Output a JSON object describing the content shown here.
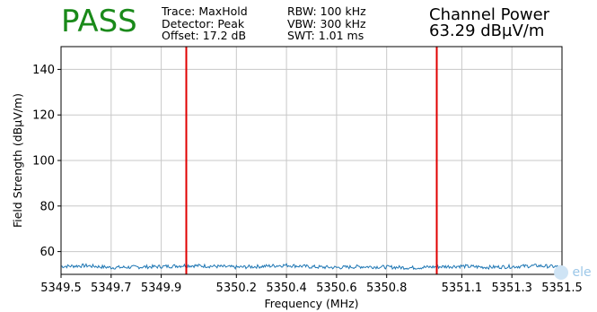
{
  "header": {
    "status": "PASS",
    "settings_left": [
      "Trace: MaxHold",
      "Detector: Peak",
      "Offset: 17.2 dB"
    ],
    "settings_right": [
      "RBW: 100 kHz",
      "VBW: 300 kHz",
      "SWT: 1.01 ms"
    ],
    "measure_label": "Channel Power",
    "measure_value": "63.29 dBµV/m"
  },
  "watermark": {
    "text": "ele"
  },
  "colors": {
    "pass": "#1a8a1a",
    "trace": "#1f77b4",
    "marker": "#e00000",
    "grid": "#c8c8c8"
  },
  "chart_data": {
    "type": "line",
    "title": "",
    "xlabel": "Frequency (MHz)",
    "ylabel": "Field Strength (dBµV/m)",
    "xlim": [
      5349.5,
      5351.5
    ],
    "ylim": [
      50,
      150
    ],
    "xticks": [
      5349.5,
      5349.7,
      5349.9,
      5350.2,
      5350.4,
      5350.6,
      5350.8,
      5351.1,
      5351.3,
      5351.5
    ],
    "xtick_labels": [
      "5349.5",
      "5349.7",
      "5349.9",
      "5350.2",
      "5350.4",
      "5350.6",
      "5350.8",
      "5351.1",
      "5351.3",
      "5351.5"
    ],
    "yticks": [
      60,
      80,
      100,
      120,
      140
    ],
    "ytick_labels": [
      "60",
      "80",
      "100",
      "120",
      "140"
    ],
    "grid": true,
    "markers": [
      5350.0,
      5351.0
    ],
    "series": [
      {
        "x": [
          5349.5,
          5349.6,
          5349.7,
          5349.8,
          5349.9,
          5350.0,
          5350.1,
          5350.2,
          5350.3,
          5350.4,
          5350.5,
          5350.6,
          5350.7,
          5350.8,
          5350.9,
          5351.0,
          5351.1,
          5351.2,
          5351.3,
          5351.4,
          5351.5
        ],
        "values": [
          53.5,
          53.8,
          53.0,
          53.2,
          53.4,
          53.9,
          53.6,
          53.1,
          53.5,
          54.0,
          53.3,
          53.0,
          53.4,
          53.2,
          52.9,
          53.3,
          53.6,
          53.1,
          53.4,
          53.8,
          53.2
        ]
      }
    ]
  }
}
